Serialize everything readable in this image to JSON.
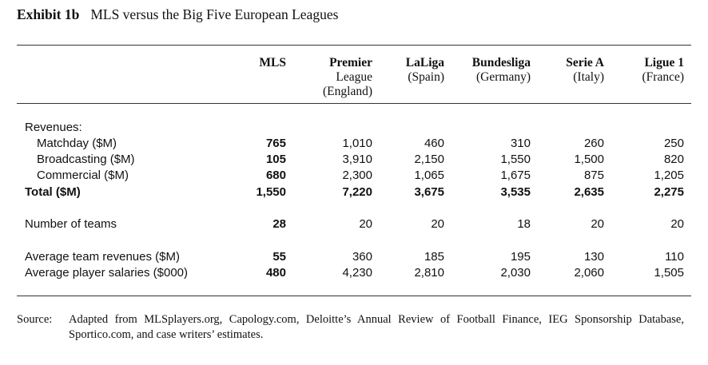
{
  "title": {
    "label": "Exhibit 1b",
    "text": "MLS versus the Big Five European Leagues"
  },
  "columns": [
    {
      "name": "MLS",
      "sub": []
    },
    {
      "name": "Premier",
      "sub": [
        "League",
        "(England)"
      ]
    },
    {
      "name": "LaLiga",
      "sub": [
        "(Spain)"
      ]
    },
    {
      "name": "Bundesliga",
      "sub": [
        "(Germany)"
      ]
    },
    {
      "name": "Serie A",
      "sub": [
        "(Italy)"
      ]
    },
    {
      "name": "Ligue 1",
      "sub": [
        "(France)"
      ]
    }
  ],
  "rows": [
    {
      "label": "Revenues:",
      "indent": false,
      "bold": false,
      "values": []
    },
    {
      "label": "Matchday ($M)",
      "indent": true,
      "bold": false,
      "values": [
        "765",
        "1,010",
        "460",
        "310",
        "260",
        "250"
      ]
    },
    {
      "label": "Broadcasting ($M)",
      "indent": true,
      "bold": false,
      "values": [
        "105",
        "3,910",
        "2,150",
        "1,550",
        "1,500",
        "820"
      ]
    },
    {
      "label": "Commercial ($M)",
      "indent": true,
      "bold": false,
      "values": [
        "680",
        "2,300",
        "1,065",
        "1,675",
        "875",
        "1,205"
      ]
    },
    {
      "label": "Total ($M)",
      "indent": false,
      "bold": true,
      "values": [
        "1,550",
        "7,220",
        "3,675",
        "3,535",
        "2,635",
        "2,275"
      ]
    },
    {
      "label": "Number of teams",
      "indent": false,
      "bold": false,
      "values": [
        "28",
        "20",
        "20",
        "18",
        "20",
        "20"
      ]
    },
    {
      "label": "Average team revenues ($M)",
      "indent": false,
      "bold": false,
      "values": [
        "55",
        "360",
        "185",
        "195",
        "130",
        "110"
      ]
    },
    {
      "label": "Average player salaries ($000)",
      "indent": false,
      "bold": false,
      "values": [
        "480",
        "4,230",
        "2,810",
        "2,030",
        "2,060",
        "1,505"
      ]
    }
  ],
  "source": {
    "label": "Source:",
    "text": "Adapted from MLSplayers.org, Capology.com, Deloitte’s Annual Review of Football Finance, IEG Sponsorship Database, Sportico.com, and case writers’ estimates."
  }
}
